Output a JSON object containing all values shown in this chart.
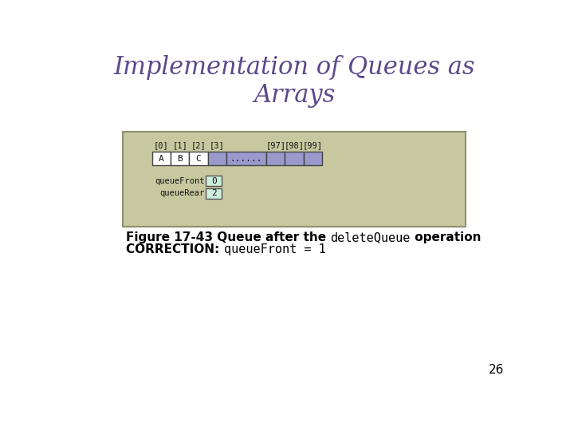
{
  "title": "Implementation of Queues as\nArrays",
  "title_color": "#5B4A8B",
  "title_fontsize": 22,
  "bg_color": "#FFFFFF",
  "panel_bg": "#C8C8A0",
  "panel_border": "#909070",
  "array_bg_light": "#9999CC",
  "array_bg_white": "#FFFFFF",
  "cell_values": [
    "A",
    "B",
    "C",
    "",
    "......",
    "",
    "",
    ""
  ],
  "cell_indices": [
    "[0]",
    "[1]",
    "[2]",
    "[3]",
    "",
    "[97]",
    "[98]",
    "[99]"
  ],
  "queueFront_val": "0",
  "queueRear_val": "2",
  "figure_caption_bold": "Figure 17-43 Queue after the ",
  "figure_caption_code": "deleteQueue",
  "figure_caption_end": " operation",
  "correction_bold": "CORRECTION: ",
  "correction_code": "queueFront = 1",
  "page_number": "26",
  "caption_fontsize": 11,
  "correction_fontsize": 11,
  "page_fontsize": 11
}
